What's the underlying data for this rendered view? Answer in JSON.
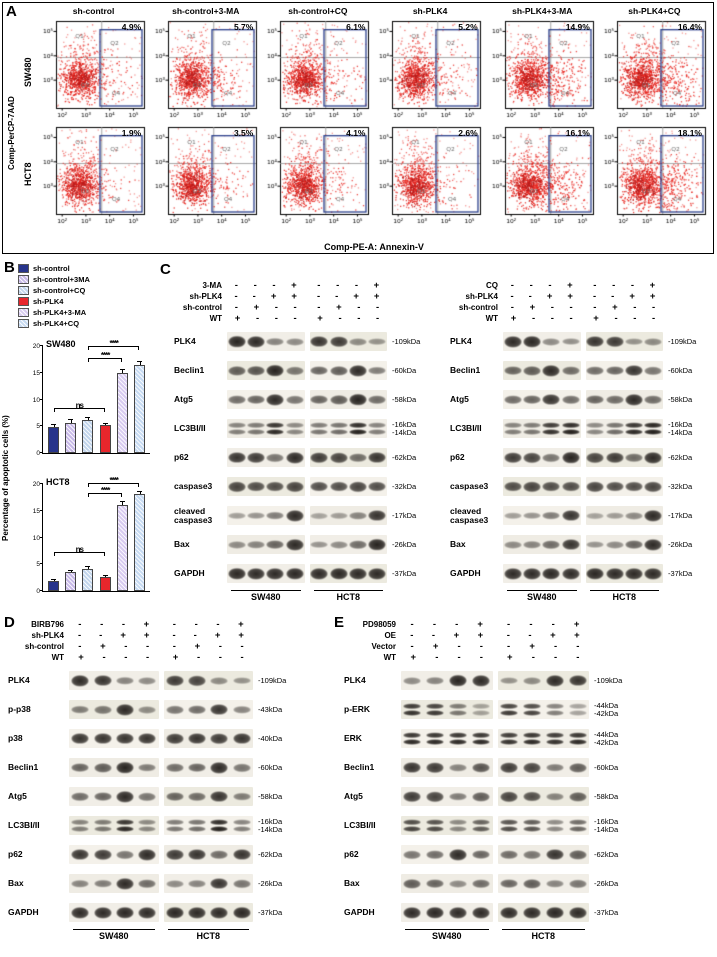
{
  "panelA": {
    "label": "A",
    "col_headers": [
      "sh-control",
      "sh-control+3-MA",
      "sh-control+CQ",
      "sh-PLK4",
      "sh-PLK4+3-MA",
      "sh-PLK4+CQ"
    ],
    "rows": [
      {
        "cell_line": "SW480",
        "percentages": [
          "4.9%",
          "5.7%",
          "6.1%",
          "5.2%",
          "14.9%",
          "16.4%"
        ]
      },
      {
        "cell_line": "HCT8",
        "percentages": [
          "1.9%",
          "3.5%",
          "4.1%",
          "2.6%",
          "16.1%",
          "18.1%"
        ]
      }
    ],
    "x_axis_label": "Comp-PE-A: Annexin-V",
    "y_axis_label": "Comp-PerCP-7AAD",
    "x_ticks": [
      "10²",
      "10³",
      "10⁴",
      "10⁵"
    ],
    "y_ticks": [
      "10³",
      "10⁴",
      "10⁵"
    ],
    "quadrants": [
      "Q1",
      "Q2",
      "Q3",
      "Q4"
    ],
    "colors": {
      "dots": "#e8221b",
      "dots_dark": "#b71c1c",
      "gate": "#2b3f8c",
      "quadrant_lines": "#8f8f8f"
    }
  },
  "panelB": {
    "label": "B",
    "ylabel": "Percentage of apoptotic cells (%)",
    "legend": [
      {
        "label": "sh-control",
        "color": "#27348b",
        "hatch": false
      },
      {
        "label": "sh-control+3MA",
        "color": "#c8b9e8",
        "hatch": true
      },
      {
        "label": "sh-control+CQ",
        "color": "#c2d5ec",
        "hatch": true
      },
      {
        "label": "sh-PLK4",
        "color": "#e8262c",
        "hatch": false
      },
      {
        "label": "sh-PLK4+3-MA",
        "color": "#d8cbf0",
        "hatch": true
      },
      {
        "label": "sh-PLK4+CQ",
        "color": "#c6daf2",
        "hatch": true
      }
    ]
  },
  "chart_data": [
    {
      "type": "bar",
      "title": "SW480",
      "categories": [
        "sh-control",
        "sh-control+3MA",
        "sh-control+CQ",
        "sh-PLK4",
        "sh-PLK4+3-MA",
        "sh-PLK4+CQ"
      ],
      "values": [
        4.9,
        5.7,
        6.1,
        5.2,
        14.9,
        16.4
      ],
      "errors": [
        0.3,
        0.4,
        0.4,
        0.3,
        0.7,
        0.6
      ],
      "ylabel": "Percentage of apoptotic cells (%)",
      "ylim": [
        0,
        20
      ],
      "yticks": [
        0,
        5,
        10,
        15,
        20
      ],
      "annotations": [
        {
          "text": "ns",
          "from": 0,
          "to": 3,
          "y": 7.6
        },
        {
          "text": "****",
          "from": 2,
          "to": 4,
          "y": 17.1
        },
        {
          "text": "****",
          "from": 2,
          "to": 5,
          "y": 19.2
        }
      ]
    },
    {
      "type": "bar",
      "title": "HCT8",
      "categories": [
        "sh-control",
        "sh-control+3MA",
        "sh-control+CQ",
        "sh-PLK4",
        "sh-PLK4+3-MA",
        "sh-PLK4+CQ"
      ],
      "values": [
        1.9,
        3.5,
        4.1,
        2.6,
        16.1,
        18.1
      ],
      "errors": [
        0.2,
        0.3,
        0.3,
        0.2,
        0.6,
        0.5
      ],
      "ylabel": "Percentage of apoptotic cells (%)",
      "ylim": [
        0,
        20
      ],
      "yticks": [
        0,
        5,
        10,
        15,
        20
      ],
      "annotations": [
        {
          "text": "ns",
          "from": 0,
          "to": 3,
          "y": 6.6
        },
        {
          "text": "****",
          "from": 2,
          "to": 4,
          "y": 17.6
        },
        {
          "text": "****",
          "from": 2,
          "to": 5,
          "y": 19.5
        }
      ]
    }
  ],
  "panelC": {
    "label": "C",
    "sub_blocks": [
      {
        "treatments": [
          {
            "label": "3-MA",
            "marks": [
              "-",
              "-",
              "-",
              "+",
              "-",
              "-",
              "-",
              "+"
            ]
          },
          {
            "label": "sh-PLK4",
            "marks": [
              "-",
              "-",
              "+",
              "+",
              "-",
              "-",
              "+",
              "+"
            ]
          },
          {
            "label": "sh-control",
            "marks": [
              "-",
              "+",
              "-",
              "-",
              "-",
              "+",
              "-",
              "-"
            ]
          },
          {
            "label": "WT",
            "marks": [
              "+",
              "-",
              "-",
              "-",
              "+",
              "-",
              "-",
              "-"
            ]
          }
        ],
        "cell_lines": [
          "SW480",
          "HCT8"
        ],
        "proteins": [
          {
            "name": "PLK4",
            "kda": [
              "-109kDa"
            ],
            "double": false,
            "g1": [
              0.95,
              0.9,
              0.35,
              0.3
            ],
            "g2": [
              0.85,
              0.8,
              0.3,
              0.25
            ]
          },
          {
            "name": "Beclin1",
            "kda": [
              "-60kDa"
            ],
            "double": false,
            "g1": [
              0.6,
              0.65,
              0.95,
              0.45
            ],
            "g2": [
              0.55,
              0.6,
              0.9,
              0.4
            ]
          },
          {
            "name": "Atg5",
            "kda": [
              "-58kDa"
            ],
            "double": false,
            "g1": [
              0.5,
              0.55,
              0.9,
              0.45
            ],
            "g2": [
              0.55,
              0.6,
              0.95,
              0.5
            ]
          },
          {
            "name": "LC3BI/II",
            "kda": [
              "-16kDa",
              "-14kDa"
            ],
            "double": true,
            "g1": [
              0.35,
              0.4,
              0.85,
              0.3
            ],
            "g2": [
              0.4,
              0.45,
              0.9,
              0.35
            ]
          },
          {
            "name": "p62",
            "kda": [
              "-62kDa"
            ],
            "double": false,
            "g1": [
              0.85,
              0.8,
              0.45,
              0.9
            ],
            "g2": [
              0.8,
              0.75,
              0.5,
              0.85
            ]
          },
          {
            "name": "caspase3",
            "kda": [
              "-32kDa"
            ],
            "double": false,
            "g1": [
              0.75,
              0.7,
              0.7,
              0.75
            ],
            "g2": [
              0.7,
              0.7,
              0.75,
              0.7
            ]
          },
          {
            "name": "cleaved caspase3",
            "kda": [
              "-17kDa"
            ],
            "double": false,
            "g1": [
              0.2,
              0.25,
              0.4,
              0.9
            ],
            "g2": [
              0.15,
              0.2,
              0.35,
              0.85
            ]
          },
          {
            "name": "Bax",
            "kda": [
              "-26kDa"
            ],
            "double": false,
            "g1": [
              0.3,
              0.35,
              0.55,
              0.9
            ],
            "g2": [
              0.25,
              0.3,
              0.5,
              0.95
            ]
          },
          {
            "name": "GAPDH",
            "kda": [
              "-37kDa"
            ],
            "double": false,
            "g1": [
              0.92,
              0.9,
              0.9,
              0.92
            ],
            "g2": [
              0.9,
              0.92,
              0.9,
              0.9
            ]
          }
        ]
      },
      {
        "treatments": [
          {
            "label": "CQ",
            "marks": [
              "-",
              "-",
              "-",
              "+",
              "-",
              "-",
              "-",
              "+"
            ]
          },
          {
            "label": "sh-PLK4",
            "marks": [
              "-",
              "-",
              "+",
              "+",
              "-",
              "-",
              "+",
              "+"
            ]
          },
          {
            "label": "sh-control",
            "marks": [
              "-",
              "+",
              "-",
              "-",
              "-",
              "+",
              "-",
              "-"
            ]
          },
          {
            "label": "WT",
            "marks": [
              "+",
              "-",
              "-",
              "-",
              "+",
              "-",
              "-",
              "-"
            ]
          }
        ],
        "cell_lines": [
          "SW480",
          "HCT8"
        ],
        "proteins": [
          {
            "name": "PLK4",
            "kda": [
              "-109kDa"
            ],
            "double": false,
            "g1": [
              0.9,
              0.92,
              0.3,
              0.28
            ],
            "g2": [
              0.85,
              0.8,
              0.25,
              0.3
            ]
          },
          {
            "name": "Beclin1",
            "kda": [
              "-60kDa"
            ],
            "double": false,
            "g1": [
              0.55,
              0.6,
              0.9,
              0.5
            ],
            "g2": [
              0.5,
              0.55,
              0.85,
              0.45
            ]
          },
          {
            "name": "Atg5",
            "kda": [
              "-58kDa"
            ],
            "double": false,
            "g1": [
              0.5,
              0.55,
              0.85,
              0.5
            ],
            "g2": [
              0.55,
              0.5,
              0.9,
              0.5
            ]
          },
          {
            "name": "LC3BI/II",
            "kda": [
              "-16kDa",
              "-14kDa"
            ],
            "double": true,
            "g1": [
              0.35,
              0.4,
              0.8,
              0.9
            ],
            "g2": [
              0.3,
              0.45,
              0.85,
              0.95
            ]
          },
          {
            "name": "p62",
            "kda": [
              "-62kDa"
            ],
            "double": false,
            "g1": [
              0.8,
              0.75,
              0.45,
              0.95
            ],
            "g2": [
              0.75,
              0.8,
              0.5,
              0.9
            ]
          },
          {
            "name": "caspase3",
            "kda": [
              "-32kDa"
            ],
            "double": false,
            "g1": [
              0.7,
              0.75,
              0.7,
              0.7
            ],
            "g2": [
              0.75,
              0.7,
              0.7,
              0.75
            ]
          },
          {
            "name": "cleaved caspase3",
            "kda": [
              "-17kDa"
            ],
            "double": false,
            "g1": [
              0.2,
              0.25,
              0.4,
              0.85
            ],
            "g2": [
              0.15,
              0.2,
              0.3,
              0.9
            ]
          },
          {
            "name": "Bax",
            "kda": [
              "-26kDa"
            ],
            "double": false,
            "g1": [
              0.3,
              0.35,
              0.5,
              0.85
            ],
            "g2": [
              0.25,
              0.3,
              0.55,
              0.9
            ]
          },
          {
            "name": "GAPDH",
            "kda": [
              "-37kDa"
            ],
            "double": false,
            "g1": [
              0.9,
              0.9,
              0.92,
              0.9
            ],
            "g2": [
              0.92,
              0.9,
              0.9,
              0.9
            ]
          }
        ]
      }
    ]
  },
  "panelD": {
    "label": "D",
    "treatments": [
      {
        "label": "BIRB796",
        "marks": [
          "-",
          "-",
          "-",
          "+",
          "-",
          "-",
          "-",
          "+"
        ]
      },
      {
        "label": "sh-PLK4",
        "marks": [
          "-",
          "-",
          "+",
          "+",
          "-",
          "-",
          "+",
          "+"
        ]
      },
      {
        "label": "sh-control",
        "marks": [
          "-",
          "+",
          "-",
          "-",
          "-",
          "+",
          "-",
          "-"
        ]
      },
      {
        "label": "WT",
        "marks": [
          "+",
          "-",
          "-",
          "-",
          "+",
          "-",
          "-",
          "-"
        ]
      }
    ],
    "cell_lines": [
      "SW480",
      "HCT8"
    ],
    "proteins": [
      {
        "name": "PLK4",
        "kda": [
          "-109kDa"
        ],
        "double": false,
        "g1": [
          0.9,
          0.85,
          0.35,
          0.3
        ],
        "g2": [
          0.8,
          0.75,
          0.3,
          0.25
        ]
      },
      {
        "name": "p-p38",
        "kda": [
          "-43kDa"
        ],
        "double": false,
        "g1": [
          0.4,
          0.45,
          0.9,
          0.3
        ],
        "g2": [
          0.45,
          0.5,
          0.85,
          0.35
        ]
      },
      {
        "name": "p38",
        "kda": [
          "-40kDa"
        ],
        "double": false,
        "g1": [
          0.85,
          0.85,
          0.85,
          0.85
        ],
        "g2": [
          0.8,
          0.85,
          0.8,
          0.85
        ]
      },
      {
        "name": "Beclin1",
        "kda": [
          "-60kDa"
        ],
        "double": false,
        "g1": [
          0.55,
          0.6,
          0.95,
          0.4
        ],
        "g2": [
          0.5,
          0.55,
          0.9,
          0.45
        ]
      },
      {
        "name": "Atg5",
        "kda": [
          "-58kDa"
        ],
        "double": false,
        "g1": [
          0.5,
          0.55,
          0.9,
          0.45
        ],
        "g2": [
          0.55,
          0.5,
          0.85,
          0.4
        ]
      },
      {
        "name": "LC3BI/II",
        "kda": [
          "-16kDa",
          "-14kDa"
        ],
        "double": true,
        "g1": [
          0.35,
          0.4,
          0.85,
          0.3
        ],
        "g2": [
          0.4,
          0.45,
          0.9,
          0.35
        ]
      },
      {
        "name": "p62",
        "kda": [
          "-62kDa"
        ],
        "double": false,
        "g1": [
          0.85,
          0.8,
          0.45,
          0.9
        ],
        "g2": [
          0.8,
          0.85,
          0.5,
          0.85
        ]
      },
      {
        "name": "Bax",
        "kda": [
          "-26kDa"
        ],
        "double": false,
        "g1": [
          0.35,
          0.4,
          0.9,
          0.5
        ],
        "g2": [
          0.3,
          0.35,
          0.85,
          0.45
        ]
      },
      {
        "name": "GAPDH",
        "kda": [
          "-37kDa"
        ],
        "double": false,
        "g1": [
          0.9,
          0.9,
          0.92,
          0.9
        ],
        "g2": [
          0.92,
          0.9,
          0.9,
          0.92
        ]
      }
    ]
  },
  "panelE": {
    "label": "E",
    "treatments": [
      {
        "label": "PD98059",
        "marks": [
          "-",
          "-",
          "-",
          "+",
          "-",
          "-",
          "-",
          "+"
        ]
      },
      {
        "label": "OE",
        "marks": [
          "-",
          "-",
          "+",
          "+",
          "-",
          "-",
          "+",
          "+"
        ]
      },
      {
        "label": "Vector",
        "marks": [
          "-",
          "+",
          "-",
          "-",
          "-",
          "+",
          "-",
          "-"
        ]
      },
      {
        "label": "WT",
        "marks": [
          "+",
          "-",
          "-",
          "-",
          "+",
          "-",
          "-",
          "-"
        ]
      }
    ],
    "cell_lines": [
      "SW480",
      "HCT8"
    ],
    "proteins": [
      {
        "name": "PLK4",
        "kda": [
          "-109kDa"
        ],
        "double": false,
        "g1": [
          0.3,
          0.35,
          0.95,
          0.9
        ],
        "g2": [
          0.25,
          0.3,
          0.9,
          0.85
        ]
      },
      {
        "name": "p-ERK",
        "kda": [
          "-44kDa",
          "-42kDa"
        ],
        "double": true,
        "g1": [
          0.8,
          0.75,
          0.4,
          0.15
        ],
        "g2": [
          0.75,
          0.7,
          0.35,
          0.15
        ]
      },
      {
        "name": "ERK",
        "kda": [
          "-44kDa",
          "-42kDa"
        ],
        "double": true,
        "g1": [
          0.85,
          0.85,
          0.85,
          0.85
        ],
        "g2": [
          0.8,
          0.85,
          0.8,
          0.85
        ]
      },
      {
        "name": "Beclin1",
        "kda": [
          "-60kDa"
        ],
        "double": false,
        "g1": [
          0.85,
          0.8,
          0.35,
          0.65
        ],
        "g2": [
          0.8,
          0.75,
          0.4,
          0.6
        ]
      },
      {
        "name": "Atg5",
        "kda": [
          "-58kDa"
        ],
        "double": false,
        "g1": [
          0.8,
          0.75,
          0.4,
          0.6
        ],
        "g2": [
          0.75,
          0.7,
          0.35,
          0.6
        ]
      },
      {
        "name": "LC3BI/II",
        "kda": [
          "-16kDa",
          "-14kDa"
        ],
        "double": true,
        "g1": [
          0.7,
          0.65,
          0.3,
          0.55
        ],
        "g2": [
          0.65,
          0.6,
          0.3,
          0.5
        ]
      },
      {
        "name": "p62",
        "kda": [
          "-62kDa"
        ],
        "double": false,
        "g1": [
          0.45,
          0.5,
          0.9,
          0.55
        ],
        "g2": [
          0.5,
          0.45,
          0.85,
          0.6
        ]
      },
      {
        "name": "Bax",
        "kda": [
          "-26kDa"
        ],
        "double": false,
        "g1": [
          0.6,
          0.55,
          0.3,
          0.5
        ],
        "g2": [
          0.55,
          0.6,
          0.35,
          0.45
        ]
      },
      {
        "name": "GAPDH",
        "kda": [
          "-37kDa"
        ],
        "double": false,
        "g1": [
          0.9,
          0.92,
          0.9,
          0.9
        ],
        "g2": [
          0.9,
          0.9,
          0.92,
          0.9
        ]
      }
    ]
  }
}
